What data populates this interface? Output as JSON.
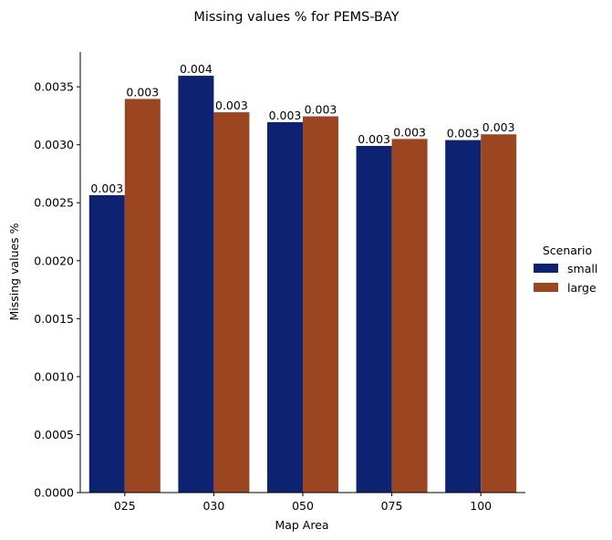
{
  "chart_data": {
    "type": "bar",
    "title": "Missing values % for PEMS-BAY",
    "xlabel": "Map Area",
    "ylabel": "Missing values %",
    "categories": [
      "025",
      "030",
      "050",
      "075",
      "100"
    ],
    "series": [
      {
        "name": "small",
        "color": "#0d2270",
        "values": [
          0.002565,
          0.003595,
          0.003195,
          0.00299,
          0.00304
        ],
        "labels": [
          "0.003",
          "0.004",
          "0.003",
          "0.003",
          "0.003"
        ]
      },
      {
        "name": "large",
        "color": "#9b4621",
        "values": [
          0.003395,
          0.00328,
          0.003245,
          0.00305,
          0.00309
        ],
        "labels": [
          "0.003",
          "0.003",
          "0.003",
          "0.003",
          "0.003"
        ]
      }
    ],
    "ylim": [
      0,
      0.0038
    ],
    "yticks": [
      0.0,
      0.0005,
      0.001,
      0.0015,
      0.002,
      0.0025,
      0.003,
      0.0035
    ],
    "ytick_labels": [
      "0.0000",
      "0.0005",
      "0.0010",
      "0.0015",
      "0.0020",
      "0.0025",
      "0.0030",
      "0.0035"
    ],
    "grid": false,
    "legend": {
      "title": "Scenario",
      "placement": "right"
    }
  }
}
